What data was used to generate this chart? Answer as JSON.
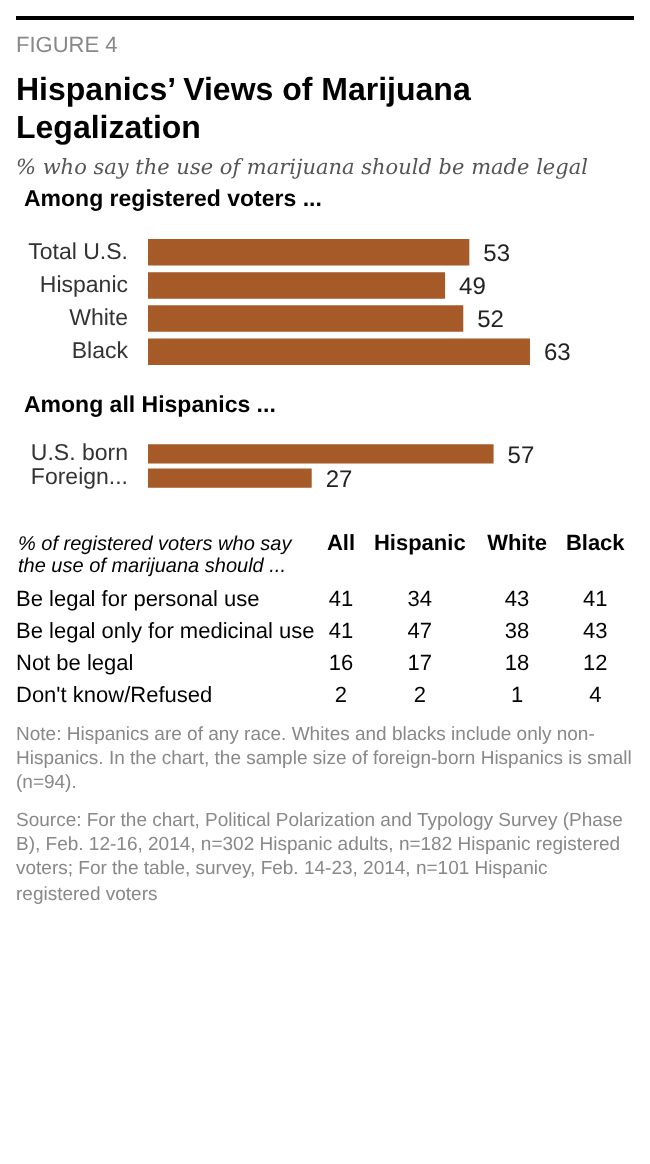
{
  "chart_data": [
    {
      "type": "other",
      "title": "Hispanics’ Views of Marijuana Legalization",
      "subtitle": "% who say the use of marijuana should be made legal",
      "annotations": [
        "FIGURE 4"
      ]
    },
    {
      "type": "bar",
      "orientation": "horizontal",
      "title": "Among registered voters ...",
      "categories": [
        "Total U.S.",
        "Hispanic",
        "White",
        "Black"
      ],
      "values": [
        53,
        49,
        52,
        63
      ],
      "color": "#a55a27",
      "data_labels": true
    },
    {
      "type": "bar",
      "orientation": "horizontal",
      "title": "Among all Hispanics ...",
      "categories": [
        "U.S. born",
        "Foreign..."
      ],
      "values": [
        57,
        27
      ],
      "color": "#a55a27",
      "data_labels": true
    },
    {
      "type": "other",
      "title": "% of registered voters who say the use of marijuana should ...",
      "categories": [
        "Be legal for personal use",
        "Be legal only for medicinal use",
        "Not be legal",
        "Don't know/Refused"
      ],
      "series": [
        {
          "name": "All",
          "values": [
            41,
            41,
            16,
            2
          ]
        },
        {
          "name": "Hispanic",
          "values": [
            34,
            47,
            17,
            2
          ]
        },
        {
          "name": "White",
          "values": [
            43,
            38,
            18,
            1
          ]
        },
        {
          "name": "Black",
          "values": [
            41,
            43,
            12,
            4
          ]
        }
      ],
      "data_labels": true,
      "annotations": [
        "Note: Hispanics are of any race. Whites and blacks include only non-Hispanics. In the chart, the sample size of foreign-born Hispanics is small (n=94).",
        "Source: For the chart, Political Polarization and Typology Survey (Phase B), Feb. 12-16, 2014, n=302 Hispanic adults, n=182 Hispanic registered voters; For the table, survey, Feb. 14-23, 2014, n=101 Hispanic registered voters"
      ]
    }
  ]
}
